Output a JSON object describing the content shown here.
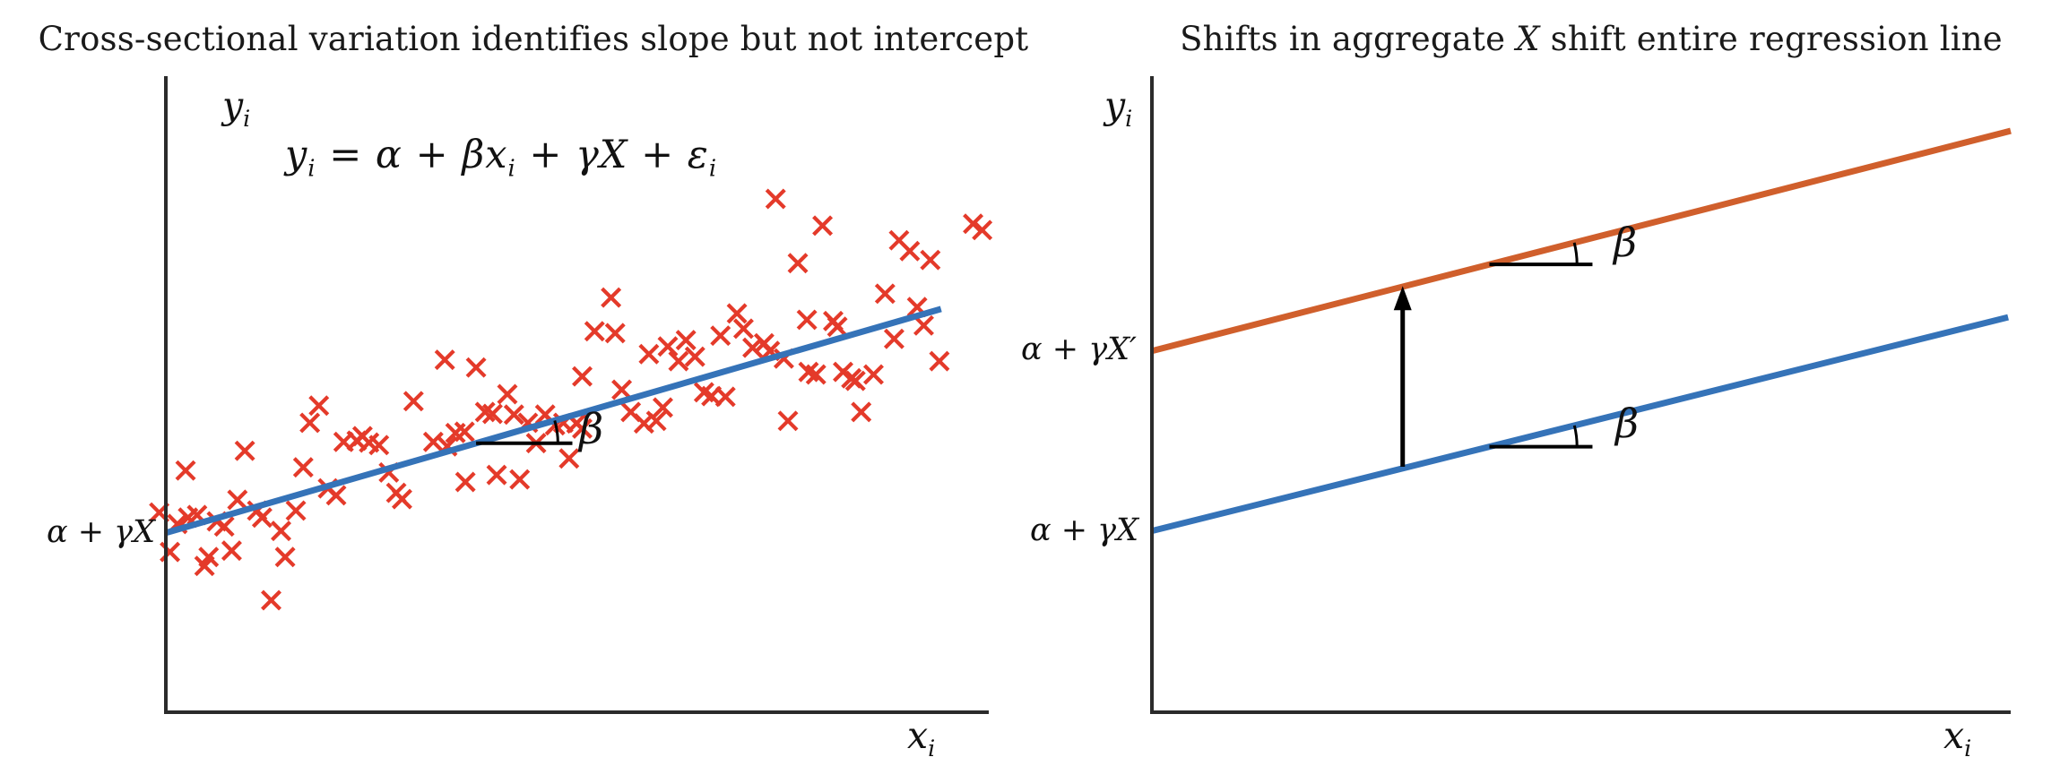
{
  "page": {
    "background": "#ffffff",
    "text_color": "#1a1a1a"
  },
  "chart_data": [
    {
      "type": "scatter",
      "title": "Cross-sectional variation identifies slope but not intercept",
      "xlabel": {
        "main": "x",
        "sub": "i"
      },
      "ylabel": {
        "main": "y",
        "sub": "i"
      },
      "equation": {
        "p1": "y",
        "s1": "i",
        "p2": " = α + βx",
        "s2": "i",
        "p3": " + γX + ε",
        "s3": "i"
      },
      "intercept_label": "α + γX",
      "slope_label": "β",
      "grid": false,
      "axis_ticks": "none",
      "coords": "normalized 0-1 within axes, y up",
      "axis_color": "#2b2b2b",
      "marker": "x",
      "marker_color": "#e43a2a",
      "regression_line": {
        "color": "#3573b8",
        "x0": 0.0,
        "y0": 0.282,
        "x1": 0.942,
        "y1": 0.634
      },
      "slope_marker": {
        "x_start": 0.377,
        "x_end": 0.494
      },
      "points": [
        [
          -0.008,
          0.314
        ],
        [
          0.005,
          0.252
        ],
        [
          0.014,
          0.296
        ],
        [
          0.024,
          0.38
        ],
        [
          0.027,
          0.306
        ],
        [
          0.038,
          0.31
        ],
        [
          0.047,
          0.23
        ],
        [
          0.052,
          0.244
        ],
        [
          0.062,
          0.3
        ],
        [
          0.071,
          0.292
        ],
        [
          0.08,
          0.254
        ],
        [
          0.087,
          0.334
        ],
        [
          0.096,
          0.411
        ],
        [
          0.111,
          0.317
        ],
        [
          0.117,
          0.306
        ],
        [
          0.128,
          0.176
        ],
        [
          0.14,
          0.285
        ],
        [
          0.145,
          0.244
        ],
        [
          0.158,
          0.317
        ],
        [
          0.167,
          0.385
        ],
        [
          0.175,
          0.455
        ],
        [
          0.186,
          0.482
        ],
        [
          0.197,
          0.352
        ],
        [
          0.207,
          0.341
        ],
        [
          0.216,
          0.425
        ],
        [
          0.232,
          0.427
        ],
        [
          0.239,
          0.434
        ],
        [
          0.247,
          0.424
        ],
        [
          0.259,
          0.42
        ],
        [
          0.271,
          0.377
        ],
        [
          0.28,
          0.345
        ],
        [
          0.287,
          0.335
        ],
        [
          0.301,
          0.489
        ],
        [
          0.325,
          0.425
        ],
        [
          0.339,
          0.554
        ],
        [
          0.342,
          0.418
        ],
        [
          0.352,
          0.439
        ],
        [
          0.363,
          0.441
        ],
        [
          0.364,
          0.362
        ],
        [
          0.377,
          0.542
        ],
        [
          0.388,
          0.472
        ],
        [
          0.397,
          0.469
        ],
        [
          0.402,
          0.373
        ],
        [
          0.415,
          0.5
        ],
        [
          0.423,
          0.468
        ],
        [
          0.43,
          0.366
        ],
        [
          0.44,
          0.455
        ],
        [
          0.45,
          0.423
        ],
        [
          0.461,
          0.468
        ],
        [
          0.473,
          0.451
        ],
        [
          0.483,
          0.455
        ],
        [
          0.49,
          0.399
        ],
        [
          0.499,
          0.454
        ],
        [
          0.506,
          0.446
        ],
        [
          0.506,
          0.528
        ],
        [
          0.521,
          0.599
        ],
        [
          0.541,
          0.652
        ],
        [
          0.546,
          0.596
        ],
        [
          0.554,
          0.507
        ],
        [
          0.565,
          0.472
        ],
        [
          0.581,
          0.454
        ],
        [
          0.587,
          0.563
        ],
        [
          0.596,
          0.458
        ],
        [
          0.604,
          0.479
        ],
        [
          0.61,
          0.575
        ],
        [
          0.623,
          0.552
        ],
        [
          0.632,
          0.585
        ],
        [
          0.643,
          0.559
        ],
        [
          0.654,
          0.503
        ],
        [
          0.663,
          0.497
        ],
        [
          0.674,
          0.592
        ],
        [
          0.68,
          0.496
        ],
        [
          0.694,
          0.627
        ],
        [
          0.702,
          0.603
        ],
        [
          0.713,
          0.573
        ],
        [
          0.727,
          0.58
        ],
        [
          0.734,
          0.568
        ],
        [
          0.741,
          0.807
        ],
        [
          0.751,
          0.556
        ],
        [
          0.756,
          0.458
        ],
        [
          0.768,
          0.706
        ],
        [
          0.779,
          0.617
        ],
        [
          0.781,
          0.535
        ],
        [
          0.79,
          0.531
        ],
        [
          0.798,
          0.765
        ],
        [
          0.811,
          0.615
        ],
        [
          0.816,
          0.606
        ],
        [
          0.823,
          0.535
        ],
        [
          0.833,
          0.525
        ],
        [
          0.838,
          0.521
        ],
        [
          0.845,
          0.472
        ],
        [
          0.86,
          0.531
        ],
        [
          0.874,
          0.658
        ],
        [
          0.885,
          0.587
        ],
        [
          0.891,
          0.742
        ],
        [
          0.904,
          0.725
        ],
        [
          0.913,
          0.637
        ],
        [
          0.921,
          0.608
        ],
        [
          0.929,
          0.711
        ],
        [
          0.94,
          0.552
        ],
        [
          0.981,
          0.768
        ],
        [
          0.992,
          0.758
        ]
      ]
    },
    {
      "type": "line",
      "title": {
        "pre": "Shifts in aggregate ",
        "var": "X",
        "post": " shift entire regression line"
      },
      "xlabel": {
        "main": "x",
        "sub": "i"
      },
      "ylabel": {
        "main": "y",
        "sub": "i"
      },
      "grid": false,
      "axis_ticks": "none",
      "coords": "normalized 0-1 within axes, y up",
      "axis_color": "#2b2b2b",
      "lines": [
        {
          "label": "α + γX′",
          "color": "#d05f2c",
          "x0": 0.0,
          "y0": 0.568,
          "x1": 1.0,
          "y1": 0.914,
          "slope_label": "β",
          "slope_marker": {
            "x_start": 0.393,
            "x_end": 0.513
          }
        },
        {
          "label": "α + γX",
          "color": "#3573b8",
          "x0": 0.0,
          "y0": 0.285,
          "x1": 0.997,
          "y1": 0.621,
          "slope_label": "β",
          "slope_marker": {
            "x_start": 0.393,
            "x_end": 0.513
          }
        }
      ],
      "shift_arrow": {
        "x": 0.292,
        "y_from": 0.386,
        "y_to": 0.67,
        "color": "#000000"
      }
    }
  ]
}
